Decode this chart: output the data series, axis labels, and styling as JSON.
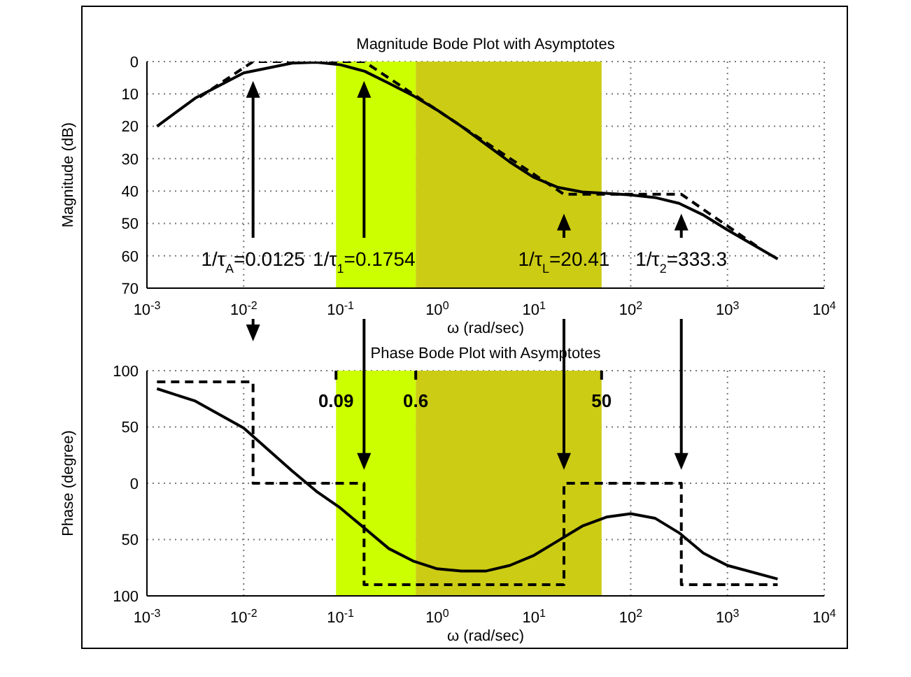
{
  "chart_data": [
    {
      "type": "line",
      "title": "Magnitude Bode Plot with Asymptotes",
      "xlabel": "ω (rad/sec)",
      "ylabel": "Magnitude  (dB)",
      "log": "x",
      "xlim": [
        0.001,
        10000
      ],
      "xticks": [
        {
          "value": 0.001,
          "label": "10$^{-3}$"
        },
        {
          "value": 0.01,
          "label": "10$^{-2}$"
        },
        {
          "value": 0.1,
          "label": "10$^{-1}$"
        },
        {
          "value": 1,
          "label": "10$^{0}$"
        },
        {
          "value": 10,
          "label": "10$^{1}$"
        },
        {
          "value": 100,
          "label": "10$^{2}$"
        },
        {
          "value": 1000,
          "label": "10$^{3}$"
        },
        {
          "value": 10000,
          "label": "10$^{4}$"
        }
      ],
      "ylim": [
        70,
        0
      ],
      "yticks": [
        0,
        10,
        20,
        30,
        40,
        50,
        60,
        70
      ],
      "grid": true,
      "series": [
        {
          "color": "#000000",
          "line_style": "solid",
          "x": [
            0.00127,
            0.00316,
            0.01,
            0.0316,
            0.0562,
            0.1,
            0.178,
            0.316,
            0.562,
            1,
            1.78,
            3.16,
            5.62,
            10,
            17.8,
            31.6,
            56.2,
            100,
            178,
            316,
            562,
            1000,
            3300
          ],
          "values": [
            20,
            11.3,
            3.5,
            0.5,
            0.2,
            1,
            3,
            6.7,
            10.5,
            15,
            20,
            25.5,
            31,
            35.8,
            38.9,
            40.3,
            40.7,
            41.2,
            42,
            43.8,
            47.4,
            52,
            61
          ]
        },
        {
          "color": "#000000",
          "line_style": "dashed",
          "x": [
            0.0035,
            0.0125,
            0.1754,
            20.41,
            333.3,
            2000
          ],
          "values": [
            11,
            0,
            0,
            41,
            41,
            57
          ]
        }
      ],
      "bands": [
        {
          "axis": "x",
          "from": 0.09,
          "to": 0.6,
          "color": "#ccff00"
        },
        {
          "axis": "x",
          "from": 0.6,
          "to": 50,
          "color": "#cccc14"
        }
      ],
      "annotations": [
        "1/τ$_{A}$=0.0125",
        "1/τ$_{1}$=0.1754",
        "1/τ$_{L}$=20.41",
        "1/τ$_{2}$=333.3"
      ]
    },
    {
      "type": "line",
      "title": "Phase Bode Plot with Asymptotes",
      "xlabel": "ω (rad/sec)",
      "ylabel": "Phase (degree)",
      "log": "x",
      "xlim": [
        0.001,
        10000
      ],
      "xticks": [
        {
          "value": 0.001,
          "label": "10$^{-3}$"
        },
        {
          "value": 0.01,
          "label": "10$^{-2}$"
        },
        {
          "value": 0.1,
          "label": "10$^{-1}$"
        },
        {
          "value": 1,
          "label": "10$^{0}$"
        },
        {
          "value": 10,
          "label": "10$^{1}$"
        },
        {
          "value": 100,
          "label": "10$^{2}$"
        },
        {
          "value": 1000,
          "label": "10$^{3}$"
        },
        {
          "value": 10000,
          "label": "10$^{4}$"
        }
      ],
      "ylim": [
        -100,
        100
      ],
      "yticks": [
        {
          "value": -100,
          "label": "100"
        },
        {
          "value": -50,
          "label": "50"
        },
        0,
        50,
        100
      ],
      "grid": true,
      "series": [
        {
          "color": "#000000",
          "line_style": "solid",
          "x": [
            0.00127,
            0.00316,
            0.01,
            0.0316,
            0.0562,
            0.1,
            0.178,
            0.316,
            0.562,
            1,
            1.78,
            3.16,
            5.62,
            10,
            17.8,
            31.6,
            56.2,
            100,
            178,
            316,
            562,
            1000,
            3300
          ],
          "values": [
            84,
            73,
            49,
            11,
            -7,
            -22,
            -40,
            -58,
            -69,
            -76,
            -78,
            -78,
            -73,
            -64,
            -51,
            -38,
            -30,
            -27,
            -31,
            -44,
            -62,
            -73,
            -85
          ]
        },
        {
          "color": "#000000",
          "line_style": "dashed",
          "x": [
            0.00127,
            0.0125,
            0.0125,
            0.1754,
            0.1754,
            20.41,
            20.41,
            333.3,
            333.3,
            3300
          ],
          "values": [
            90,
            90,
            0,
            0,
            -90,
            -90,
            0,
            0,
            -90,
            -90
          ]
        }
      ],
      "bands": [
        {
          "axis": "x",
          "from": 0.09,
          "to": 0.6,
          "color": "#ccff00"
        },
        {
          "axis": "x",
          "from": 0.6,
          "to": 50,
          "color": "#cccc14"
        }
      ],
      "ref_lines": [
        {
          "axis": "x",
          "value": 0.09,
          "label": "0.09"
        },
        {
          "axis": "x",
          "value": 0.6,
          "label": "0.6"
        },
        {
          "axis": "x",
          "value": 50,
          "label": "50"
        }
      ]
    }
  ]
}
